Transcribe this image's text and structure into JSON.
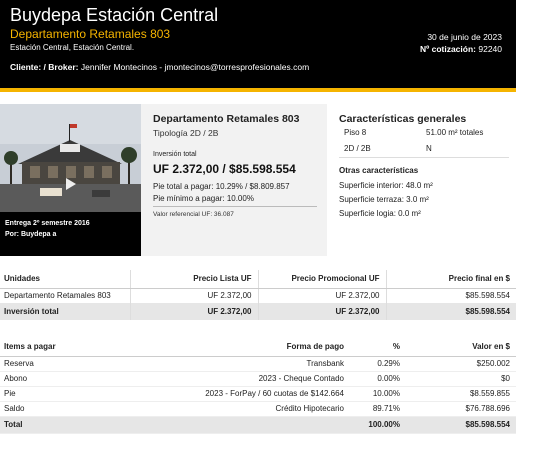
{
  "header": {
    "title": "Buydepa Estación Central",
    "subtitle": "Departamento Retamales 803",
    "location": "Estación Central, Estación Central.",
    "client_label": "Cliente: / Broker:",
    "client_value": "Jennifer Montecinos - jmontecinos@torresprofesionales.com",
    "date": "30 de junio de 2023",
    "quote_label": "Nº cotización:",
    "quote_number": "92240",
    "accent_color": "#f5b400"
  },
  "photo": {
    "caption_delivery": "Entrega 2º semestre 2016",
    "caption_by": "Por: Buydepa a"
  },
  "summary": {
    "title": "Departamento Retamales 803",
    "tipologia": "Tipología 2D / 2B",
    "investment_label": "Inversión total",
    "investment_value": "UF 2.372,00 / $85.598.554",
    "pie_total": "Pie total a pagar: 10.29% / $8.809.857",
    "pie_minimo": "Pie mínimo a pagar: 10.00%",
    "valor_referencial": "Valor referencial UF: 36.087"
  },
  "features": {
    "title": "Características generales",
    "piso": "Piso 8",
    "superficie_total": "51.00 m² totales",
    "tipologia": "2D / 2B",
    "orientacion": "N",
    "otras_title": "Otras características",
    "sup_interior": "Superficie interior: 48.0 m²",
    "sup_terraza": "Superficie terraza: 3.0 m²",
    "sup_logia": "Superficie logia: 0.0 m²"
  },
  "units_table": {
    "headers": [
      "Unidades",
      "Precio Lista UF",
      "Precio Promocional UF",
      "Precio final en $"
    ],
    "rows": [
      [
        "Departamento Retamales 803",
        "UF 2.372,00",
        "UF 2.372,00",
        "$85.598.554"
      ]
    ],
    "total": [
      "Inversión total",
      "UF 2.372,00",
      "UF 2.372,00",
      "$85.598.554"
    ]
  },
  "payment_table": {
    "headers": [
      "Items a pagar",
      "Forma de pago",
      "%",
      "Valor en $"
    ],
    "rows": [
      [
        "Reserva",
        "Transbank",
        "0.29%",
        "$250.002"
      ],
      [
        "Abono",
        "2023 - Cheque Contado",
        "0.00%",
        "$0"
      ],
      [
        "Pie",
        "2023 - ForPay / 60 cuotas de $142.664",
        "10.00%",
        "$8.559.855"
      ],
      [
        "Saldo",
        "Crédito Hipotecario",
        "89.71%",
        "$76.788.696"
      ]
    ],
    "total": [
      "Total",
      "",
      "100.00%",
      "$85.598.554"
    ]
  }
}
